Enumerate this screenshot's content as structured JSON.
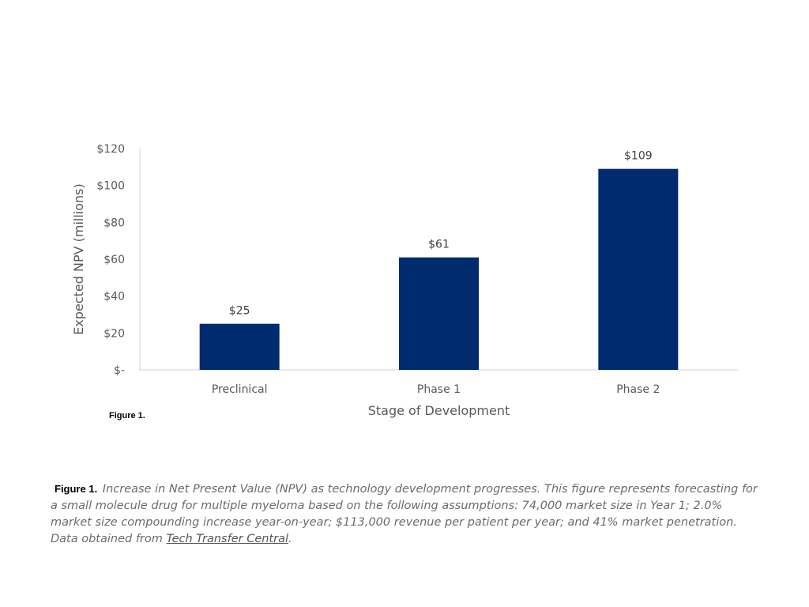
{
  "chart_data": {
    "type": "bar",
    "categories": [
      "Preclinical",
      "Phase 1",
      "Phase 2"
    ],
    "values": [
      25,
      61,
      109
    ],
    "data_labels": [
      "$25",
      "$61",
      "$109"
    ],
    "xlabel": "Stage of Development",
    "ylabel": "Expected NPV (millions)",
    "ylim": [
      0,
      120
    ],
    "yticks": [
      0,
      20,
      40,
      60,
      80,
      100,
      120
    ],
    "ytick_labels": [
      "$-",
      "$20",
      "$40",
      "$60",
      "$80",
      "$100",
      "$120"
    ],
    "bar_color": "#002b6e",
    "grid": false,
    "legend": "none"
  },
  "figure_label_small": "Figure 1.",
  "caption": {
    "label": "Figure 1.",
    "text": "Increase in Net Present Value (NPV) as technology development progresses. This figure represents forecasting for a small molecule drug for multiple myeloma based on the following assumptions: 74,000 market size in Year 1; 2.0% market size compounding increase year-on-year; $113,000 revenue per patient per year; and 41% market penetration. Data obtained from",
    "source_link": "Tech Transfer Central",
    "end": "."
  }
}
